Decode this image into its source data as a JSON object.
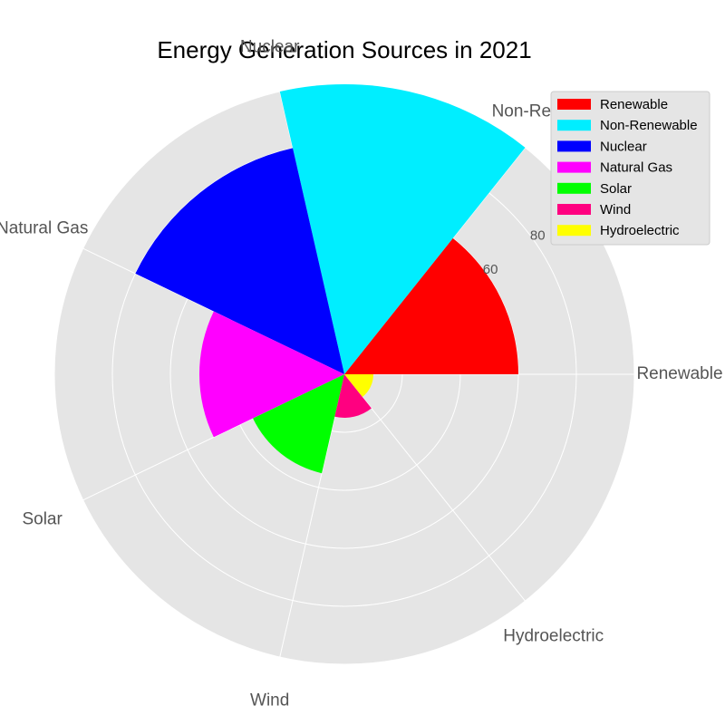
{
  "chart_data": {
    "type": "polar-bar",
    "title": "Energy Generation Sources in 2021",
    "categories": [
      "Renewable",
      "Non-Renewable",
      "Nuclear",
      "Natural Gas",
      "Solar",
      "Wind",
      "Hydroelectric"
    ],
    "values": [
      60,
      100,
      80,
      50,
      35,
      15,
      10
    ],
    "colors": [
      "#ff0000",
      "#00eeff",
      "#0000ff",
      "#ff00ff",
      "#00ff00",
      "#ff0080",
      "#ffff00"
    ],
    "r_ticks": [
      60,
      80
    ],
    "r_max": 100,
    "legend": {
      "placement": "top-right",
      "entries": [
        "Renewable",
        "Non-Renewable",
        "Nuclear",
        "Natural Gas",
        "Solar",
        "Wind",
        "Hydroelectric"
      ]
    },
    "grid": true,
    "background": "#e5e5e5"
  }
}
